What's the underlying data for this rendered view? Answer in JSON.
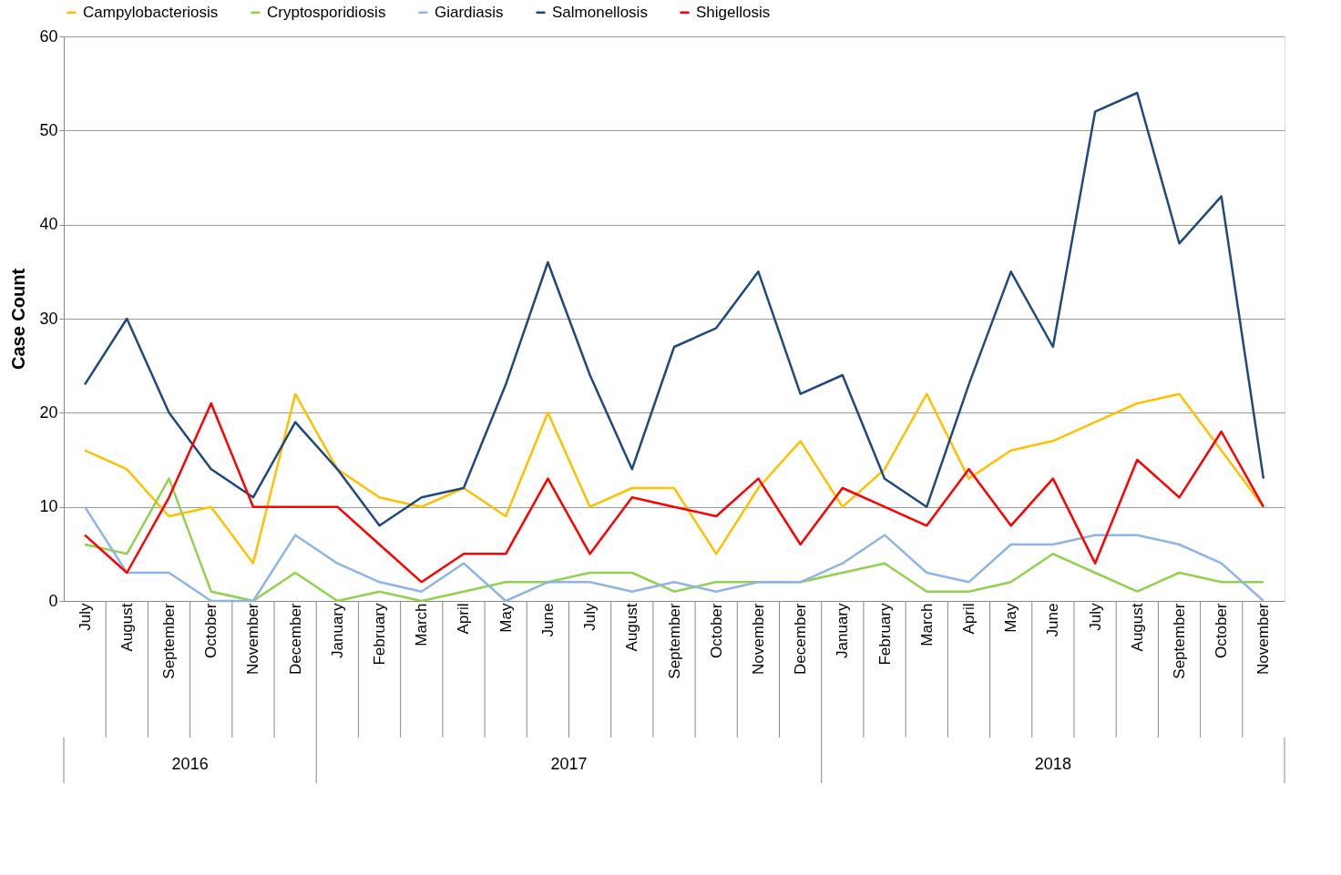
{
  "chart_data": {
    "type": "line",
    "ylabel": "Case Count",
    "categories": [
      "July",
      "August",
      "September",
      "October",
      "November",
      "December",
      "January",
      "February",
      "March",
      "April",
      "May",
      "June",
      "July",
      "August",
      "September",
      "October",
      "November",
      "December",
      "January",
      "February",
      "March",
      "April",
      "May",
      "June",
      "July",
      "August",
      "September",
      "October",
      "November"
    ],
    "series": [
      {
        "name": "Campylobacteriosis",
        "color": "#ffc000",
        "values": [
          16,
          14,
          9,
          10,
          4,
          22,
          14,
          11,
          10,
          12,
          9,
          20,
          10,
          12,
          12,
          5,
          12,
          17,
          10,
          14,
          22,
          13,
          16,
          17,
          19,
          21,
          22,
          16,
          10
        ]
      },
      {
        "name": "Cryptosporidiosis",
        "color": "#92d050",
        "values": [
          6,
          5,
          13,
          1,
          0,
          3,
          0,
          1,
          0,
          1,
          2,
          2,
          3,
          3,
          1,
          2,
          2,
          2,
          3,
          4,
          1,
          1,
          2,
          5,
          3,
          1,
          3,
          2,
          2
        ]
      },
      {
        "name": "Giardiasis",
        "color": "#8eb4e3",
        "values": [
          10,
          3,
          3,
          0,
          0,
          7,
          4,
          2,
          1,
          4,
          0,
          2,
          2,
          1,
          2,
          1,
          2,
          2,
          4,
          7,
          3,
          2,
          6,
          6,
          7,
          7,
          6,
          4,
          0
        ]
      },
      {
        "name": "Salmonellosis",
        "color": "#1f497d",
        "values": [
          23,
          30,
          20,
          14,
          11,
          19,
          14,
          8,
          11,
          12,
          23,
          36,
          24,
          14,
          27,
          29,
          35,
          22,
          24,
          13,
          10,
          23,
          35,
          27,
          52,
          54,
          38,
          43,
          13
        ]
      },
      {
        "name": "Shigellosis",
        "color": "#ff0000",
        "values": [
          7,
          3,
          11,
          21,
          10,
          10,
          10,
          6,
          2,
          5,
          5,
          13,
          5,
          11,
          10,
          9,
          13,
          6,
          12,
          10,
          8,
          14,
          8,
          13,
          4,
          15,
          11,
          18,
          10
        ]
      }
    ],
    "ylim": [
      0,
      60
    ],
    "yticks": [
      0,
      10,
      20,
      30,
      40,
      50,
      60
    ],
    "grid": "y",
    "legend": "top",
    "marker": "none",
    "line_style": "solid",
    "annotations": [
      "2016",
      "2017",
      "2018"
    ]
  }
}
